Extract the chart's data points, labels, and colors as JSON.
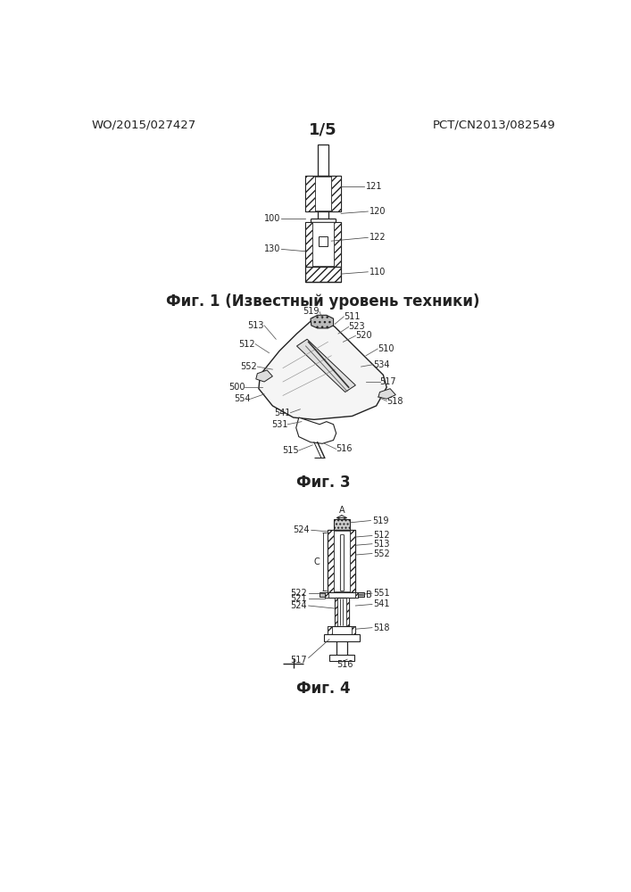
{
  "page_width": 7.07,
  "page_height": 10.0,
  "bg_color": "#ffffff",
  "header_left": "WO/2015/027427",
  "header_right": "PCT/CN2013/082549",
  "header_center": "1/5",
  "fig1_caption": "Фиг. 1 (Известный уровень техники)",
  "fig3_caption": "Фиг. 3",
  "fig4_caption": "Фиг. 4",
  "line_color": "#222222",
  "label_fontsize": 7.0,
  "caption_fontsize": 12,
  "header_fontsize": 9.5
}
